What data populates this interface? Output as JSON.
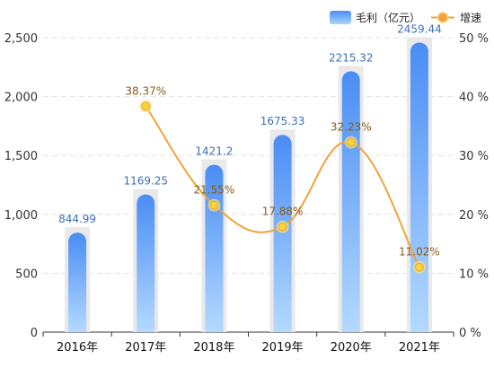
{
  "chart_data": {
    "type": "bar",
    "categories": [
      "2016年",
      "2017年",
      "2018年",
      "2019年",
      "2020年",
      "2021年"
    ],
    "series": [
      {
        "name": "毛利（亿元）",
        "type": "bar",
        "axis": "left",
        "values": [
          844.99,
          1169.25,
          1421.2,
          1675.33,
          2215.32,
          2459.44
        ],
        "labels": [
          "844.99",
          "1169.25",
          "1421.2",
          "1675.33",
          "2215.32",
          "2459.44"
        ],
        "color": "#4e95f5"
      },
      {
        "name": "增速",
        "type": "line",
        "axis": "right",
        "values": [
          null,
          38.37,
          21.55,
          17.88,
          32.23,
          11.02
        ],
        "labels": [
          "",
          "38.37%",
          "21.55%",
          "17.88%",
          "32.23%",
          "11.02%"
        ],
        "color": "#f0a33a"
      }
    ],
    "y_left": {
      "min": 0,
      "max": 2500,
      "ticks": [
        0,
        500,
        1000,
        1500,
        2000,
        2500
      ],
      "tick_labels": [
        "0",
        "500",
        "1,000",
        "1,500",
        "2,000",
        "2,500"
      ]
    },
    "y_right": {
      "min": 0,
      "max": 50,
      "ticks": [
        0,
        10,
        20,
        30,
        40,
        50
      ],
      "tick_labels": [
        "0 %",
        "10 %",
        "20 %",
        "30 %",
        "40 %",
        "50 %"
      ]
    },
    "grid": true,
    "legend": "top-right",
    "title": "",
    "xlabel": "",
    "ylabel": ""
  }
}
